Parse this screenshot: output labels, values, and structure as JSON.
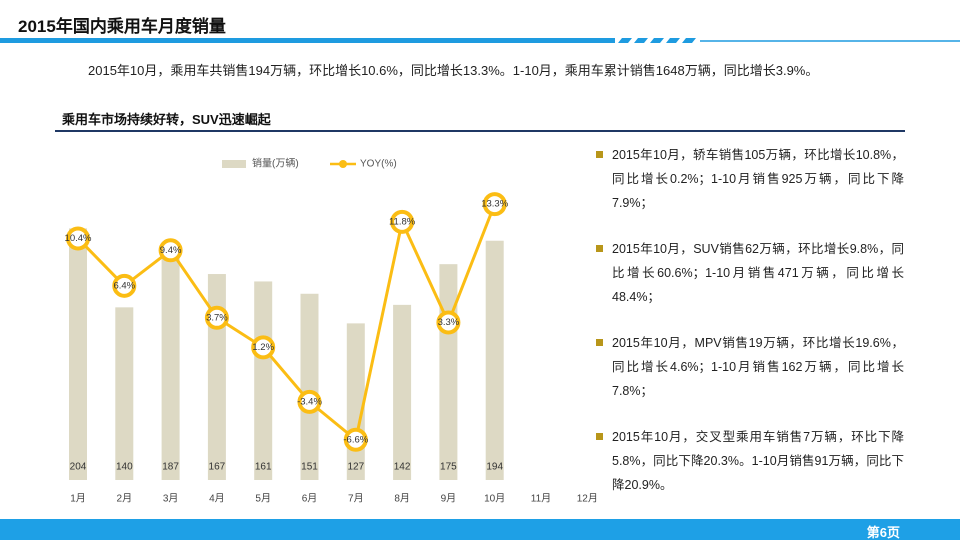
{
  "header": {
    "title": "2015年国内乘用车月度销量"
  },
  "summary": "2015年10月，乘用车共销售194万辆，环比增长10.6%，同比增长13.3%。1-10月，乘用车累计销售1648万辆，同比增长3.9%。",
  "chart_data": {
    "type": "bar",
    "title": "乘用车市场持续好转，SUV迅速崛起",
    "categories": [
      "1月",
      "2月",
      "3月",
      "4月",
      "5月",
      "6月",
      "7月",
      "8月",
      "9月",
      "10月",
      "11月",
      "12月"
    ],
    "series": [
      {
        "name": "销量(万辆)",
        "color": "#ddd9c4",
        "values": [
          204,
          140,
          187,
          167,
          161,
          151,
          127,
          142,
          175,
          194,
          null,
          null
        ]
      },
      {
        "name": "YOY(%)",
        "type": "line",
        "axis": "y2",
        "color": "#fbbd14",
        "values": [
          10.4,
          6.4,
          9.4,
          3.7,
          1.2,
          -3.4,
          -6.6,
          11.8,
          3.3,
          13.3,
          null,
          null
        ],
        "value_labels": [
          "10.4%",
          "6.4%",
          "9.4%",
          "3.7%",
          "1.2%",
          "-3.4%",
          "-6.6%",
          "11.8%",
          "3.3%",
          "13.3%",
          null,
          null
        ]
      }
    ],
    "ylim": [
      0,
      240
    ],
    "y2lim": [
      -10,
      15
    ],
    "legend": "top"
  },
  "notes": [
    "2015年10月，轿车销售105万辆，环比增长10.8%，同比增长0.2%；1-10月销售925万辆，同比下降7.9%；",
    "2015年10月，SUV销售62万辆，环比增长9.8%，同比增长60.6%；1-10月销售471万辆，同比增长48.4%；",
    "2015年10月，MPV销售19万辆，环比增长19.6%，同比增长4.6%；1-10月销售162万辆，同比增长7.8%；",
    "2015年10月，交叉型乘用车销售7万辆，环比下降5.8%，同比下降20.3%。1-10月销售91万辆，同比下降20.9%。"
  ],
  "footer": "第6页"
}
